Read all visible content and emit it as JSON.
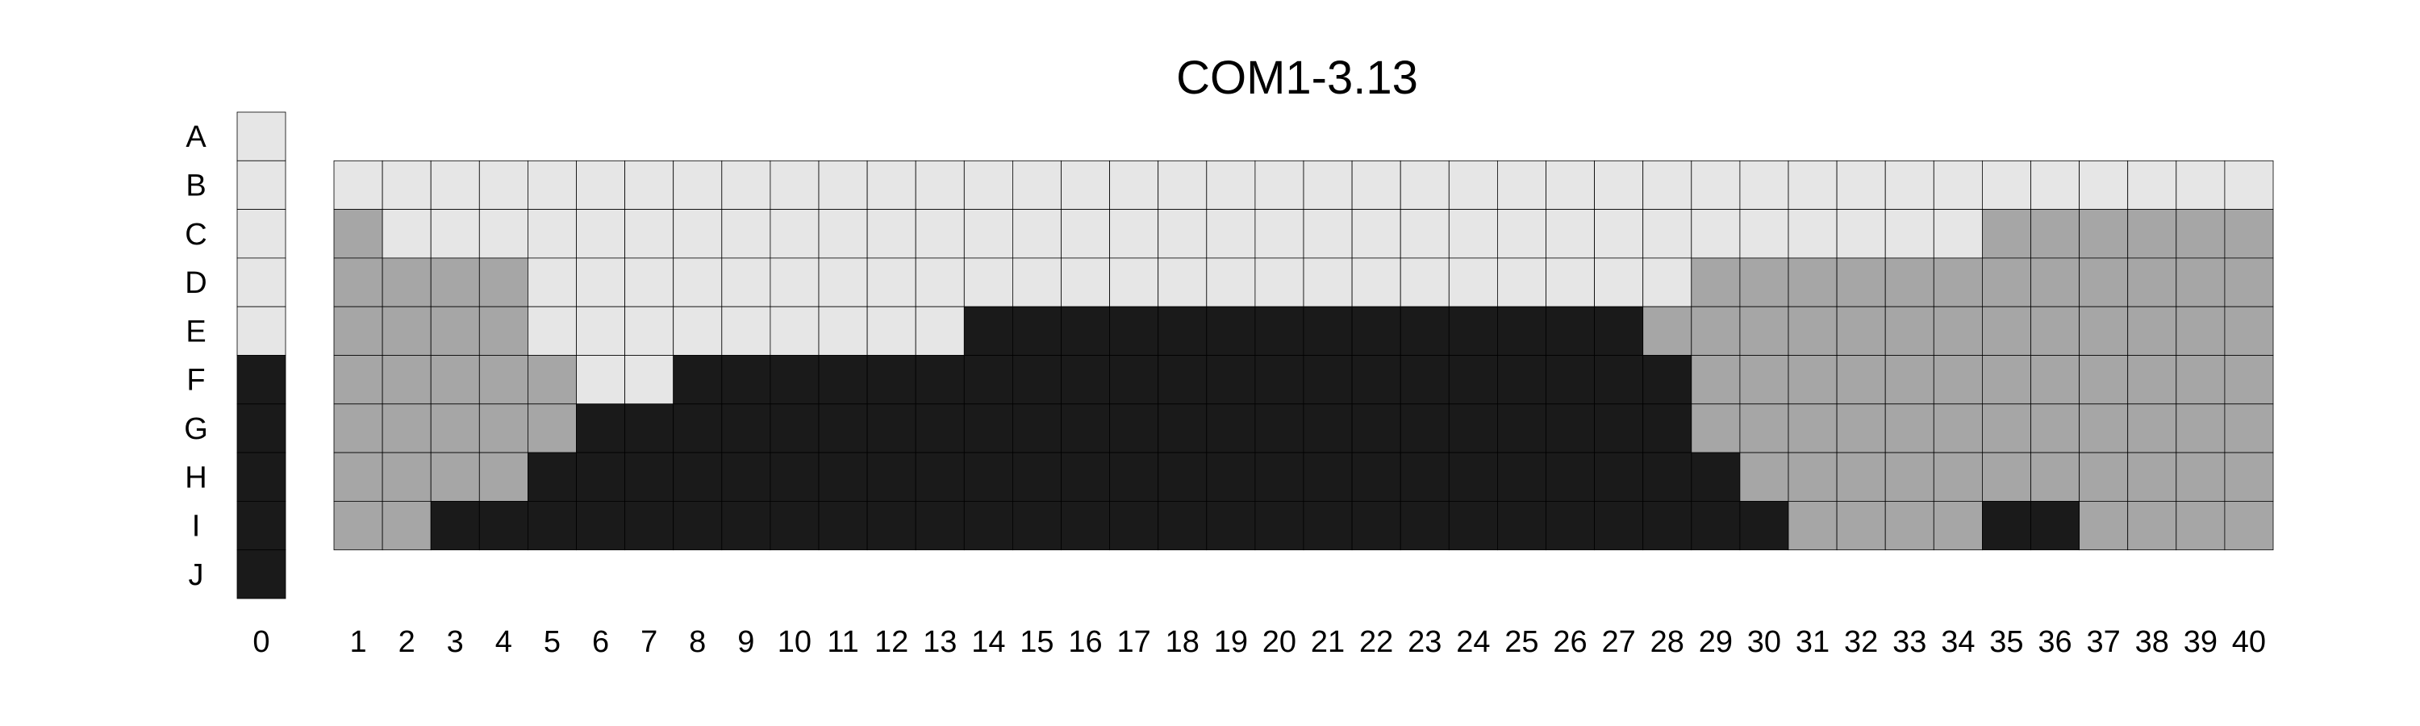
{
  "chart_data": {
    "type": "heatmap",
    "title": "COM1-3.13",
    "rows": [
      "A",
      "B",
      "C",
      "D",
      "E",
      "F",
      "G",
      "H",
      "I",
      "J"
    ],
    "key_column": {
      "label": "0",
      "rows": [
        "A",
        "B",
        "C",
        "D",
        "E",
        "F",
        "G",
        "H",
        "I",
        "J"
      ],
      "values": [
        0,
        0,
        0,
        0,
        0,
        2,
        2,
        2,
        2,
        2
      ]
    },
    "columns": [
      "1",
      "2",
      "3",
      "4",
      "5",
      "6",
      "7",
      "8",
      "9",
      "10",
      "11",
      "12",
      "13",
      "14",
      "15",
      "16",
      "17",
      "18",
      "19",
      "20",
      "21",
      "22",
      "23",
      "24",
      "25",
      "26",
      "27",
      "28",
      "29",
      "30",
      "31",
      "32",
      "33",
      "34",
      "35",
      "36",
      "37",
      "38",
      "39",
      "40"
    ],
    "grid_rows": [
      "B",
      "C",
      "D",
      "E",
      "F",
      "G",
      "H",
      "I"
    ],
    "values": [
      [
        0,
        0,
        0,
        0,
        0,
        0,
        0,
        0,
        0,
        0,
        0,
        0,
        0,
        0,
        0,
        0,
        0,
        0,
        0,
        0,
        0,
        0,
        0,
        0,
        0,
        0,
        0,
        0,
        0,
        0,
        0,
        0,
        0,
        0,
        0,
        0,
        0,
        0,
        0,
        0
      ],
      [
        1,
        0,
        0,
        0,
        0,
        0,
        0,
        0,
        0,
        0,
        0,
        0,
        0,
        0,
        0,
        0,
        0,
        0,
        0,
        0,
        0,
        0,
        0,
        0,
        0,
        0,
        0,
        0,
        0,
        0,
        0,
        0,
        0,
        0,
        1,
        1,
        1,
        1,
        1,
        1
      ],
      [
        1,
        1,
        1,
        1,
        0,
        0,
        0,
        0,
        0,
        0,
        0,
        0,
        0,
        0,
        0,
        0,
        0,
        0,
        0,
        0,
        0,
        0,
        0,
        0,
        0,
        0,
        0,
        0,
        1,
        1,
        1,
        1,
        1,
        1,
        1,
        1,
        1,
        1,
        1,
        1
      ],
      [
        1,
        1,
        1,
        1,
        0,
        0,
        0,
        0,
        0,
        0,
        0,
        0,
        0,
        2,
        2,
        2,
        2,
        2,
        2,
        2,
        2,
        2,
        2,
        2,
        2,
        2,
        2,
        1,
        1,
        1,
        1,
        1,
        1,
        1,
        1,
        1,
        1,
        1,
        1,
        1
      ],
      [
        1,
        1,
        1,
        1,
        1,
        0,
        0,
        2,
        2,
        2,
        2,
        2,
        2,
        2,
        2,
        2,
        2,
        2,
        2,
        2,
        2,
        2,
        2,
        2,
        2,
        2,
        2,
        2,
        1,
        1,
        1,
        1,
        1,
        1,
        1,
        1,
        1,
        1,
        1,
        1
      ],
      [
        1,
        1,
        1,
        1,
        1,
        2,
        2,
        2,
        2,
        2,
        2,
        2,
        2,
        2,
        2,
        2,
        2,
        2,
        2,
        2,
        2,
        2,
        2,
        2,
        2,
        2,
        2,
        2,
        1,
        1,
        1,
        1,
        1,
        1,
        1,
        1,
        1,
        1,
        1,
        1
      ],
      [
        1,
        1,
        1,
        1,
        2,
        2,
        2,
        2,
        2,
        2,
        2,
        2,
        2,
        2,
        2,
        2,
        2,
        2,
        2,
        2,
        2,
        2,
        2,
        2,
        2,
        2,
        2,
        2,
        2,
        1,
        1,
        1,
        1,
        1,
        1,
        1,
        1,
        1,
        1,
        1
      ],
      [
        1,
        1,
        2,
        2,
        2,
        2,
        2,
        2,
        2,
        2,
        2,
        2,
        2,
        2,
        2,
        2,
        2,
        2,
        2,
        2,
        2,
        2,
        2,
        2,
        2,
        2,
        2,
        2,
        2,
        2,
        1,
        1,
        1,
        1,
        2,
        2,
        1,
        1,
        1,
        1
      ]
    ],
    "level_colors": [
      "#e6e6e6",
      "#a6a6a6",
      "#1a1a1a"
    ],
    "grid": true,
    "legend": "none"
  }
}
